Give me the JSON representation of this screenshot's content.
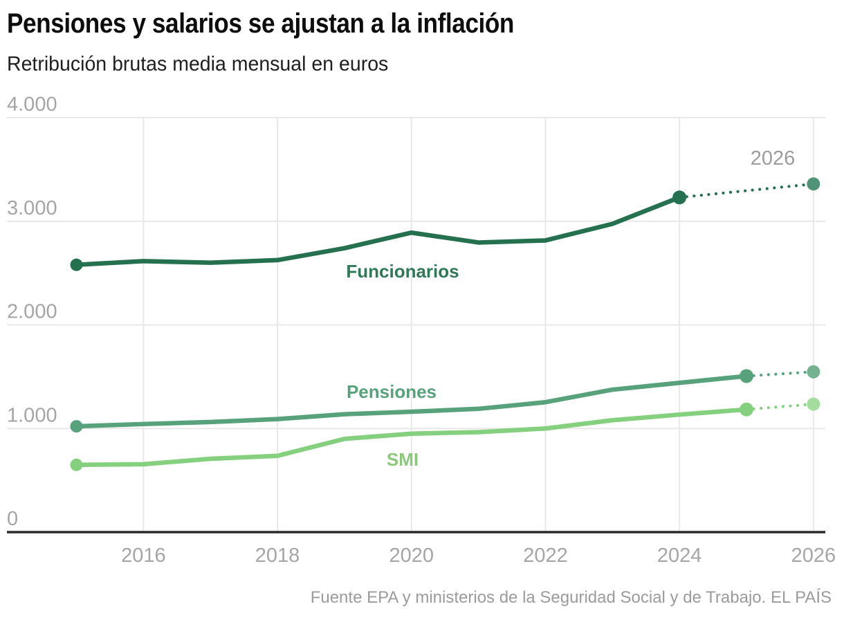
{
  "header": {
    "title": "Pensiones y salarios se ajustan a la inflación",
    "subtitle": "Retribución brutas media mensual en euros"
  },
  "footer": {
    "source": "Fuente EPA y ministerios de la Seguridad Social y de Trabajo. EL PAÍS"
  },
  "chart_data": {
    "type": "line",
    "title": "Pensiones y salarios se ajustan a la inflación",
    "subtitle": "Retribución brutas media mensual en euros",
    "source": "Fuente EPA y ministerios de la Seguridad Social y de Trabajo. EL PAÍS",
    "ylim": [
      0,
      4000
    ],
    "xlim": [
      2015,
      2026
    ],
    "grid": true,
    "legend": "inline-labels",
    "y_ticks": [
      0,
      1000,
      2000,
      3000,
      4000
    ],
    "y_tick_labels": [
      "0",
      "1.000",
      "2.000",
      "3.000",
      "4.000"
    ],
    "x_ticks": [
      2016,
      2018,
      2020,
      2022,
      2024,
      2026
    ],
    "projection_label": {
      "text": "2026",
      "x": 1117,
      "y": 238
    },
    "colors": {
      "grid": "#e8e8e8",
      "axis": "#2b2b2b",
      "tick_label": "#a5a5a5",
      "annotation": "#9c9c9c"
    },
    "series": [
      {
        "name": "Funcionarios",
        "color": "#24704f",
        "projected_color": "#4f9478",
        "label": {
          "text": "Funcionarios",
          "color": "#2e7a57",
          "x": 582,
          "y": 401
        },
        "x": [
          2015,
          2016,
          2017,
          2018,
          2019,
          2020,
          2021,
          2022,
          2023,
          2024
        ],
        "values": [
          2580,
          2615,
          2600,
          2625,
          2740,
          2890,
          2795,
          2815,
          2975,
          3230
        ],
        "projection": {
          "x": [
            2024,
            2026
          ],
          "values": [
            3230,
            3360
          ]
        }
      },
      {
        "name": "Pensiones",
        "color": "#57a27a",
        "projected_color": "#74b291",
        "label": {
          "text": "Pensiones",
          "color": "#57a27a",
          "x": 566,
          "y": 575
        },
        "x": [
          2015,
          2016,
          2017,
          2018,
          2019,
          2020,
          2021,
          2022,
          2023,
          2024,
          2025
        ],
        "values": [
          1021,
          1043,
          1063,
          1091,
          1138,
          1162,
          1190,
          1254,
          1375,
          1441,
          1506
        ],
        "projection": {
          "x": [
            2025,
            2026
          ],
          "values": [
            1506,
            1547
          ]
        }
      },
      {
        "name": "SMI",
        "color": "#85d07f",
        "projected_color": "#a3dc9c",
        "label": {
          "text": "SMI",
          "color": "#8cc87c",
          "x": 582,
          "y": 673
        },
        "x": [
          2015,
          2016,
          2017,
          2018,
          2019,
          2020,
          2021,
          2022,
          2023,
          2024,
          2025
        ],
        "values": [
          649,
          655,
          708,
          736,
          900,
          950,
          965,
          1000,
          1080,
          1134,
          1184
        ],
        "projection": {
          "x": [
            2025,
            2026
          ],
          "values": [
            1184,
            1235
          ]
        }
      }
    ]
  }
}
